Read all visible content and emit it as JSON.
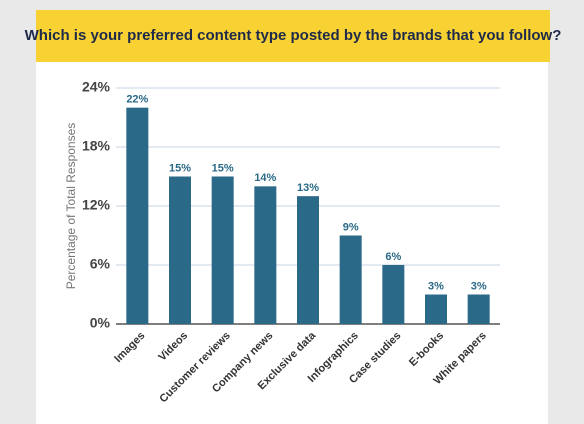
{
  "chart_data": {
    "type": "bar",
    "title": "Which is your preferred content type posted by the brands that you follow?",
    "y_label": "Percentage of Total Responses",
    "categories": [
      "Images",
      "Videos",
      "Customer reviews",
      "Company news",
      "Exclusive data",
      "Infographics",
      "Case studies",
      "E-books",
      "White papers"
    ],
    "values": [
      22,
      15,
      15,
      14,
      13,
      9,
      6,
      3,
      3
    ],
    "value_labels": [
      "22%",
      "15%",
      "15%",
      "14%",
      "13%",
      "9%",
      "6%",
      "3%",
      "3%"
    ],
    "color": "#2a6987",
    "ylim": [
      0,
      24
    ],
    "yticks": [
      {
        "value": 0,
        "label": "0%"
      },
      {
        "value": 6,
        "label": "6%"
      },
      {
        "value": 12,
        "label": "12%"
      },
      {
        "value": 18,
        "label": "18%"
      },
      {
        "value": 24,
        "label": "24%"
      }
    ],
    "grid": true
  }
}
